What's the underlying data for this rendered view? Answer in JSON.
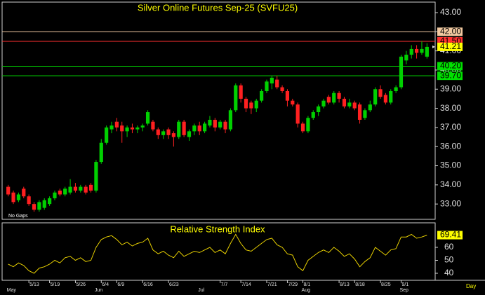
{
  "chart_data": [
    {
      "type": "candlestick",
      "title": "Silver Online Futures Sep-25 (SVFU25)",
      "note": "No Gaps",
      "categories": [
        null,
        null,
        null,
        null,
        "5/13",
        null,
        null,
        null,
        "5/19",
        null,
        null,
        null,
        null,
        "5/26",
        null,
        null,
        null,
        null,
        "6/4",
        null,
        null,
        "6/9",
        null,
        null,
        null,
        null,
        "6/16",
        null,
        null,
        null,
        null,
        "6/23",
        null,
        null,
        null,
        null,
        null,
        null,
        null,
        null,
        null,
        "7/7",
        null,
        null,
        null,
        "7/14",
        null,
        null,
        null,
        null,
        "7/21",
        null,
        null,
        null,
        "7/29",
        null,
        null,
        "8/1",
        null,
        null,
        null,
        null,
        null,
        null,
        "8/13",
        null,
        null,
        "8/18",
        null,
        null,
        null,
        null,
        "8/25",
        null,
        null,
        null,
        "9/1",
        null,
        null,
        null,
        null,
        null
      ],
      "months": [
        "May",
        null,
        null,
        null,
        null,
        null,
        null,
        null,
        null,
        null,
        null,
        null,
        null,
        null,
        null,
        null,
        null,
        "Jun",
        null,
        null,
        null,
        null,
        null,
        null,
        null,
        null,
        null,
        null,
        null,
        null,
        null,
        null,
        null,
        null,
        null,
        null,
        null,
        "Jul",
        null,
        null,
        null,
        null,
        null,
        null,
        null,
        null,
        null,
        null,
        null,
        null,
        null,
        null,
        null,
        null,
        null,
        null,
        null,
        "Aug",
        null,
        null,
        null,
        null,
        null,
        null,
        null,
        null,
        null,
        null,
        null,
        null,
        null,
        null,
        null,
        null,
        null,
        null,
        "Sep",
        null,
        null,
        null,
        null,
        null
      ],
      "open": [
        33.9,
        33.6,
        33.2,
        33.8,
        33.4,
        33.0,
        32.7,
        32.8,
        33.0,
        33.3,
        33.7,
        33.5,
        33.6,
        33.9,
        33.7,
        33.9,
        34.0,
        33.7,
        35.2,
        36.2,
        36.9,
        37.3,
        37.1,
        36.8,
        37.0,
        36.9,
        37.0,
        37.2,
        37.3,
        36.9,
        36.6,
        36.9,
        36.7,
        36.5,
        37.3,
        36.5,
        36.8,
        37.1,
        36.8,
        37.1,
        37.4,
        37.0,
        37.3,
        36.9,
        37.9,
        39.2,
        38.5,
        38.3,
        38.0,
        38.4,
        38.9,
        39.3,
        39.5,
        39.1,
        38.9,
        38.4,
        38.2,
        37.2,
        36.8,
        37.5,
        37.8,
        38.1,
        38.6,
        38.3,
        38.8,
        38.5,
        38.1,
        38.3,
        38.2,
        37.5,
        37.9,
        38.2,
        39.0,
        38.7,
        38.3,
        38.9,
        39.1,
        40.5,
        40.8,
        41.1,
        40.9,
        40.7
      ],
      "high": [
        34.0,
        33.7,
        33.6,
        33.9,
        33.5,
        33.1,
        33.2,
        33.3,
        33.4,
        33.7,
        33.8,
        33.9,
        34.3,
        34.1,
        34.0,
        34.0,
        34.1,
        35.3,
        36.4,
        37.1,
        37.3,
        37.5,
        37.3,
        37.1,
        37.2,
        37.1,
        37.2,
        37.9,
        37.4,
        37.0,
        36.9,
        37.0,
        36.8,
        37.4,
        37.4,
        36.9,
        37.2,
        37.3,
        37.3,
        37.6,
        37.5,
        37.4,
        37.4,
        38.0,
        39.3,
        39.3,
        38.6,
        38.4,
        38.5,
        39.0,
        39.5,
        39.7,
        39.7,
        39.2,
        39.0,
        38.5,
        38.3,
        37.3,
        37.6,
        37.9,
        38.2,
        38.5,
        38.7,
        38.9,
        38.9,
        38.6,
        38.5,
        38.4,
        38.3,
        38.0,
        38.4,
        39.1,
        39.2,
        38.8,
        39.0,
        39.2,
        40.8,
        41.0,
        41.3,
        41.3,
        41.5,
        41.4
      ],
      "low": [
        33.4,
        33.0,
        33.1,
        33.3,
        32.9,
        32.6,
        32.6,
        32.7,
        32.9,
        33.2,
        33.4,
        33.4,
        33.5,
        33.6,
        33.6,
        33.5,
        33.6,
        33.6,
        35.1,
        36.1,
        36.7,
        36.8,
        36.2,
        36.5,
        36.7,
        36.7,
        36.8,
        37.1,
        36.8,
        36.4,
        36.4,
        36.4,
        36.0,
        36.4,
        36.5,
        36.3,
        36.6,
        36.6,
        36.7,
        37.0,
        36.8,
        36.9,
        36.7,
        36.8,
        37.8,
        38.3,
        37.8,
        37.7,
        37.8,
        38.3,
        38.8,
        39.0,
        39.0,
        38.8,
        38.1,
        38.1,
        37.0,
        36.7,
        36.7,
        37.4,
        37.6,
        38.0,
        38.2,
        38.2,
        38.3,
        38.0,
        38.0,
        37.9,
        37.2,
        37.4,
        37.8,
        38.1,
        38.5,
        38.2,
        38.2,
        38.8,
        39.0,
        40.3,
        40.6,
        40.6,
        40.8,
        40.6
      ],
      "close": [
        33.5,
        33.1,
        33.5,
        33.4,
        33.0,
        32.7,
        33.1,
        33.2,
        33.3,
        33.6,
        33.5,
        33.8,
        33.9,
        33.7,
        33.9,
        33.6,
        33.7,
        35.2,
        36.2,
        37.0,
        37.1,
        37.0,
        36.8,
        37.0,
        36.9,
        37.0,
        37.1,
        37.8,
        36.9,
        36.6,
        36.8,
        36.6,
        36.5,
        37.3,
        36.6,
        36.8,
        37.1,
        36.8,
        37.2,
        37.4,
        37.0,
        37.3,
        36.9,
        37.9,
        39.2,
        38.5,
        38.0,
        38.0,
        38.4,
        38.9,
        39.4,
        39.6,
        39.1,
        38.9,
        38.4,
        38.2,
        37.2,
        36.8,
        37.5,
        37.8,
        38.1,
        38.4,
        38.3,
        38.8,
        38.5,
        38.1,
        38.3,
        38.0,
        37.4,
        37.9,
        38.2,
        39.0,
        38.6,
        38.3,
        38.9,
        39.1,
        40.7,
        40.8,
        41.1,
        40.9,
        41.1,
        41.21
      ],
      "up_color": "#00d000",
      "down_color": "#ff2020",
      "ylim": [
        32.2,
        43.55
      ],
      "yticks": [
        {
          "value": 33,
          "label": "33.00"
        },
        {
          "value": 34,
          "label": "34.00"
        },
        {
          "value": 35,
          "label": "35.00"
        },
        {
          "value": 36,
          "label": "36.00"
        },
        {
          "value": 37,
          "label": "37.00"
        },
        {
          "value": 38,
          "label": "38.00"
        },
        {
          "value": 39,
          "label": "39.00"
        },
        {
          "value": 40,
          "label": "40.00"
        },
        {
          "value": 41,
          "label": "41.00"
        },
        {
          "value": 42,
          "label": "42.00"
        },
        {
          "value": 43,
          "label": "43.00"
        }
      ],
      "levels": [
        {
          "value": 42,
          "label": "42.00",
          "color": "#f0c8a0"
        },
        {
          "value": 41.5,
          "label": "41.50",
          "color": "#ff3030"
        },
        {
          "value": 40.2,
          "label": "40.20",
          "color": "#00e000"
        },
        {
          "value": 39.7,
          "label": "39.70",
          "color": "#00e000"
        }
      ],
      "last_label": {
        "value": 41.21,
        "label": "41.21",
        "color": "#ffff00"
      }
    },
    {
      "type": "line",
      "title": "Relative Strength Index",
      "x_label": "Day",
      "values": [
        47,
        45,
        48,
        46,
        42,
        40,
        44,
        45,
        47,
        50,
        48,
        52,
        53,
        50,
        52,
        49,
        50,
        60,
        66,
        68,
        69,
        66,
        62,
        64,
        61,
        63,
        64,
        67,
        58,
        55,
        57,
        54,
        52,
        57,
        53,
        55,
        57,
        56,
        58,
        60,
        56,
        58,
        55,
        63,
        70,
        63,
        58,
        57,
        60,
        63,
        66,
        67,
        62,
        60,
        55,
        54,
        45,
        42,
        50,
        53,
        56,
        58,
        56,
        60,
        57,
        53,
        55,
        51,
        45,
        49,
        52,
        60,
        57,
        54,
        58,
        59,
        68,
        68,
        70,
        67,
        68,
        69.41
      ],
      "color": "#e8d000",
      "ylim": [
        34.6,
        78.9
      ],
      "yticks": [
        40,
        50,
        60
      ],
      "last_label": {
        "value": 69.41,
        "label": "69.41",
        "color": "#ffff00"
      }
    }
  ]
}
